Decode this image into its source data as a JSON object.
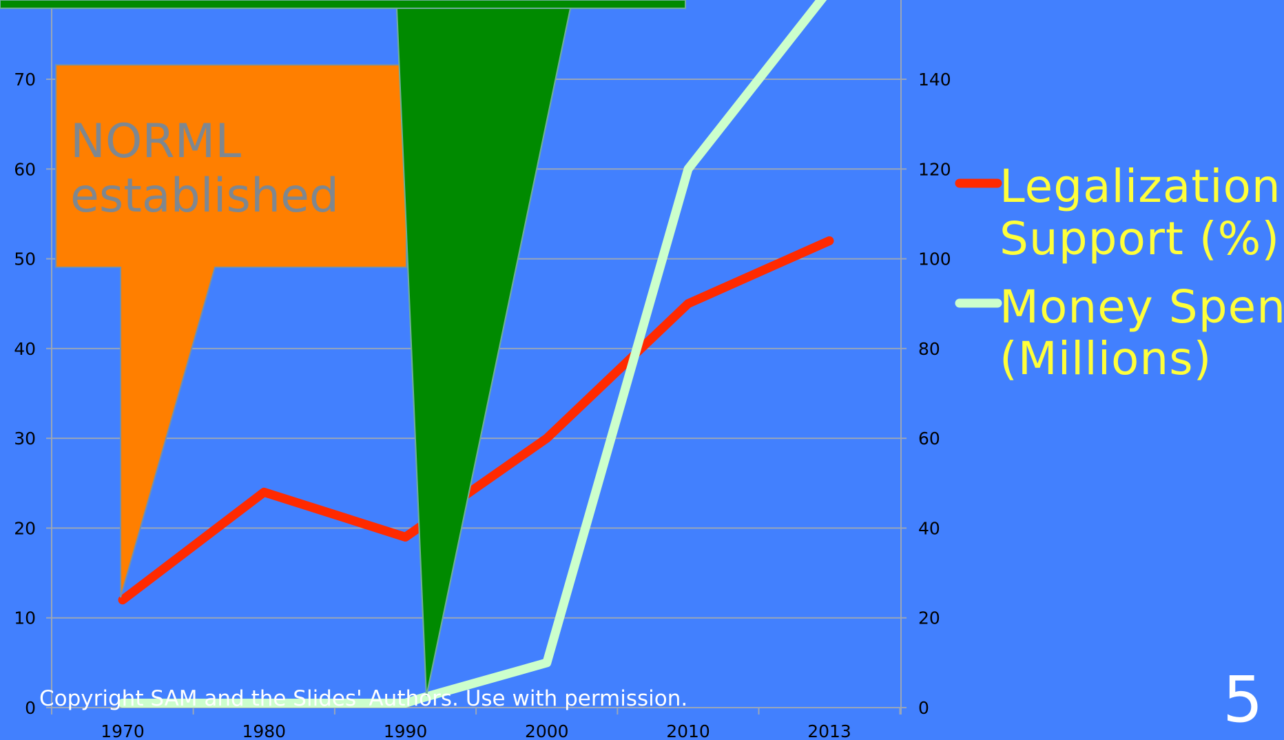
{
  "slide": {
    "number": "5",
    "copyright": "Copyright SAM and the Slides' Authors. Use with permission.",
    "background_color": "#4280fe"
  },
  "callouts": [
    {
      "lines": [
        "NORML",
        "established"
      ],
      "fill": "#ff7f00",
      "text_color": "#7e8790",
      "points_to_year": 1970
    },
    {
      "lines": [],
      "fill": "#008a00",
      "points_to_year": 1991
    }
  ],
  "chart_data": {
    "type": "line",
    "title": "",
    "xlabel": "",
    "ylabel_left": "",
    "ylabel_right": "",
    "categories": [
      "1970",
      "1980",
      "1990",
      "2000",
      "2010",
      "2013"
    ],
    "x": [
      1970,
      1980,
      1990,
      1991,
      2000,
      2010,
      2013
    ],
    "grid": true,
    "legend_position": "right",
    "y_left": {
      "min": 0,
      "max": 78,
      "ticks": [
        0,
        10,
        20,
        30,
        40,
        50,
        60,
        70
      ]
    },
    "y_right": {
      "min": 0,
      "max": 156,
      "ticks": [
        0,
        20,
        40,
        60,
        80,
        100,
        120,
        140
      ]
    },
    "series": [
      {
        "name": "Legalization Support (%)",
        "axis": "left",
        "color": "#ff2a00",
        "points": [
          [
            1970,
            12
          ],
          [
            1980,
            24
          ],
          [
            1990,
            19
          ],
          [
            2000,
            30
          ],
          [
            2010,
            45
          ],
          [
            2013,
            52
          ]
        ]
      },
      {
        "name": "Money Spent (Millions)",
        "axis": "right",
        "color": "#ccffcc",
        "points": [
          [
            1970,
            1
          ],
          [
            1980,
            1
          ],
          [
            1990,
            1
          ],
          [
            1991,
            2
          ],
          [
            2000,
            10
          ],
          [
            2010,
            120
          ],
          [
            2013,
            160
          ]
        ]
      }
    ]
  }
}
